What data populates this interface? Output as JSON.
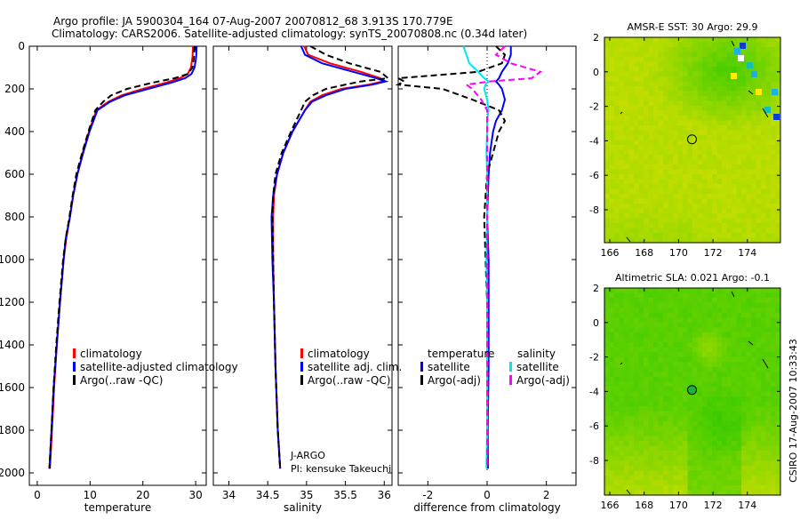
{
  "title": {
    "line1": "Argo profile: JA 5900304_164 07-Aug-2007 20070812_68 3.913S 170.779E",
    "line2": "Climatology: CARS2006. Satellite-adjusted climatology: synTS_20070808.nc (0.34d later)"
  },
  "footer": "CSIRO 17-Aug-2007 10:33:43",
  "annotation": {
    "program": "J-ARGO",
    "pi": "PI: kensuke Takeuchi"
  },
  "chart_data": [
    {
      "type": "line",
      "name": "temperature",
      "xlabel": "temperature",
      "xlim": [
        -1.5,
        32
      ],
      "xticks": [
        0,
        10,
        20,
        30
      ],
      "ylim": [
        2000,
        0
      ],
      "yticks": [
        0,
        200,
        400,
        600,
        800,
        1000,
        1200,
        1400,
        1600,
        1800,
        2000
      ],
      "legend": [
        "climatology",
        "satellite-adjusted climatology",
        "Argo(..raw -QC)"
      ],
      "depth": [
        0,
        50,
        100,
        130,
        150,
        170,
        200,
        230,
        260,
        300,
        400,
        500,
        600,
        700,
        800,
        900,
        1000,
        1200,
        1400,
        1600,
        1800,
        1980
      ],
      "series": [
        {
          "name": "climatology",
          "color": "#ff0000",
          "values": [
            29.5,
            29.4,
            29.1,
            28.5,
            27,
            24.5,
            20,
            16,
            13.5,
            11.2,
            9.8,
            8.6,
            7.6,
            6.8,
            6.2,
            5.5,
            5.0,
            4.3,
            3.7,
            3.2,
            2.8,
            2.4
          ]
        },
        {
          "name": "satellite-adjusted climatology",
          "color": "#0000ff",
          "values": [
            30.2,
            30.1,
            29.8,
            29.2,
            28,
            25.5,
            21,
            16.6,
            13.8,
            11.4,
            9.9,
            8.7,
            7.6,
            6.8,
            6.2,
            5.4,
            5.0,
            4.3,
            3.7,
            3.1,
            2.7,
            2.3
          ]
        },
        {
          "name": "Argo(..raw -QC)",
          "color": "#000000",
          "dash": true,
          "values": [
            29.8,
            29.7,
            29.4,
            28.5,
            26,
            22,
            17,
            14,
            12.5,
            11,
            9.7,
            8.5,
            7.4,
            6.7,
            6.1,
            5.4,
            4.9,
            4.2,
            3.6,
            3.1,
            2.7,
            2.3
          ]
        }
      ]
    },
    {
      "type": "line",
      "name": "salinity",
      "xlabel": "salinity",
      "xlim": [
        33.8,
        36.1
      ],
      "xticks": [
        34,
        34.5,
        35,
        35.5,
        36
      ],
      "ylim": [
        2000,
        0
      ],
      "legend": [
        "climatology",
        "satellite adj. clim.",
        "Argo(..raw -QC)"
      ],
      "depth": [
        0,
        40,
        80,
        120,
        150,
        165,
        180,
        200,
        230,
        260,
        300,
        400,
        500,
        600,
        700,
        800,
        1000,
        1200,
        1500,
        1800,
        1980
      ],
      "series": [
        {
          "name": "climatology",
          "color": "#ff0000",
          "values": [
            34.97,
            35.02,
            35.3,
            35.7,
            35.95,
            35.98,
            35.8,
            35.45,
            35.2,
            35.05,
            34.98,
            34.82,
            34.7,
            34.62,
            34.58,
            34.57,
            34.57,
            34.58,
            34.6,
            34.63,
            34.66
          ]
        },
        {
          "name": "satellite adj. clim.",
          "color": "#0000ff",
          "values": [
            34.93,
            34.98,
            35.2,
            35.6,
            35.9,
            36.02,
            35.85,
            35.5,
            35.25,
            35.07,
            34.98,
            34.82,
            34.7,
            34.62,
            34.57,
            34.55,
            34.56,
            34.58,
            34.6,
            34.63,
            34.66
          ]
        },
        {
          "name": "Argo(..raw -QC)",
          "color": "#000000",
          "dash": true,
          "values": [
            35.05,
            35.25,
            35.55,
            35.95,
            36.05,
            35.7,
            35.5,
            35.25,
            35.08,
            34.98,
            34.93,
            34.8,
            34.68,
            34.6,
            34.57,
            34.56,
            34.57,
            34.58,
            34.6,
            34.63,
            34.66
          ]
        }
      ]
    },
    {
      "type": "line",
      "name": "difference",
      "xlabel": "difference from climatology",
      "xlim": [
        -3,
        3
      ],
      "xticks": [
        -2,
        0,
        2
      ],
      "ylim": [
        2000,
        0
      ],
      "legend": {
        "temperature": "temperature",
        "salinity": "salinity",
        "items": [
          "satellite",
          "Argo(-adj)",
          "satellite",
          "Argo(-adj)"
        ]
      },
      "depth": [
        0,
        40,
        80,
        120,
        150,
        165,
        180,
        200,
        250,
        300,
        350,
        400,
        500,
        600,
        800,
        1000,
        1200,
        1500,
        1800,
        1980
      ],
      "series": [
        {
          "name": "temperature satellite",
          "color": "#0000ff",
          "values": [
            0.8,
            0.8,
            0.7,
            0.5,
            0.4,
            0.3,
            0.4,
            0.5,
            0.6,
            0.5,
            0.3,
            0.2,
            0.1,
            0.05,
            0.0,
            0.05,
            0.05,
            0.05,
            0.02,
            0.03
          ]
        },
        {
          "name": "temperature Argo(-adj)",
          "color": "#000000",
          "dash": true,
          "values": [
            0.3,
            0.6,
            0.5,
            -0.3,
            -3,
            -2.8,
            -3,
            -1.5,
            -0.5,
            0.4,
            0.6,
            0.4,
            0.2,
            0.0,
            -0.1,
            -0.05,
            0.0,
            0.0,
            0.0,
            0.0
          ]
        },
        {
          "name": "salinity satellite",
          "color": "#00e5ee",
          "values": [
            -0.8,
            -0.7,
            -0.6,
            -0.3,
            -0.1,
            0.05,
            -0.05,
            -0.1,
            0.0,
            0.05,
            0.0,
            0.0,
            -0.02,
            0.0,
            0.0,
            -0.02,
            0.0,
            0.0,
            0.0,
            -0.02
          ]
        },
        {
          "name": "salinity Argo(-adj)",
          "color": "#ff00ff",
          "dash": true,
          "values": [
            0.6,
            0.3,
            0.8,
            1.8,
            1.5,
            0.1,
            -0.7,
            -0.5,
            -0.2,
            0.0,
            0.0,
            0.0,
            0.0,
            0.0,
            0.0,
            0.0,
            0.0,
            0.0,
            0.0,
            0.0
          ]
        }
      ]
    },
    {
      "type": "heatmap",
      "name": "sst-map",
      "title": "AMSR-E SST: 30 Argo: 29.9",
      "xticks": [
        166,
        168,
        170,
        172,
        174
      ],
      "yticks": [
        2,
        0,
        -2,
        -4,
        -6,
        -8
      ],
      "xlim": [
        165.7,
        176
      ],
      "ylim": [
        -9.8,
        2
      ],
      "marker": {
        "lon": 170.779,
        "lat": -3.913
      }
    },
    {
      "type": "heatmap",
      "name": "sla-map",
      "title": "Altimetric SLA: 0.021 Argo: -0.1",
      "xticks": [
        166,
        168,
        170,
        172,
        174
      ],
      "yticks": [
        2,
        0,
        -2,
        -4,
        -6,
        -8
      ],
      "xlim": [
        165.7,
        176
      ],
      "ylim": [
        -9.8,
        2
      ],
      "marker": {
        "lon": 170.779,
        "lat": -3.913
      }
    }
  ]
}
